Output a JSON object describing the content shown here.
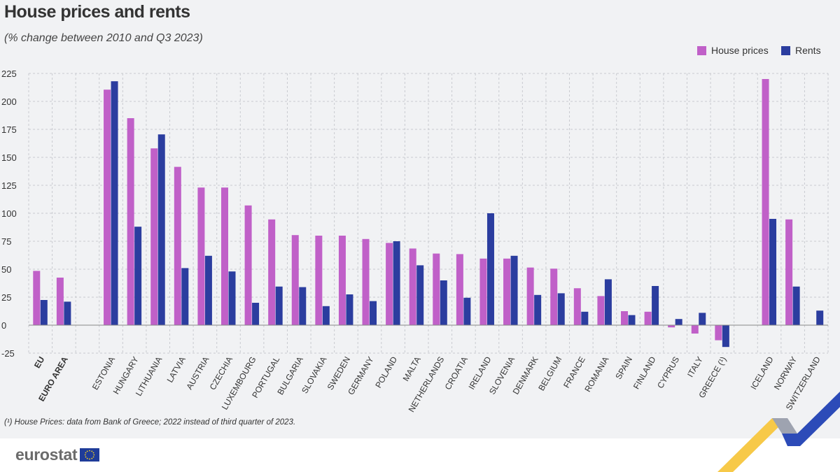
{
  "header": {
    "title": "House prices and rents",
    "subtitle": "(% change between 2010 and Q3 2023)"
  },
  "legend": [
    {
      "label": "House prices",
      "color": "#c060c8"
    },
    {
      "label": "Rents",
      "color": "#2b3d9f"
    }
  ],
  "footnote": "(¹) House Prices: data from Bank of Greece; 2022 instead of third quarter of 2023.",
  "footer": {
    "logo_text": "eurostat",
    "flag_icon": "eu-flag-icon"
  },
  "chart_data": {
    "type": "bar",
    "title": "House prices and rents",
    "subtitle": "(% change between 2010 and Q3 2023)",
    "xlabel": "",
    "ylabel": "",
    "ylim": [
      -25,
      225
    ],
    "yticks": [
      -25,
      0,
      25,
      50,
      75,
      100,
      125,
      150,
      175,
      200,
      225
    ],
    "grid": true,
    "legend_position": "top-right",
    "categories": [
      "EU",
      "EURO AREA",
      "",
      "ESTONIA",
      "HUNGARY",
      "LITHUANIA",
      "LATVIA",
      "AUSTRIA",
      "CZECHIA",
      "LUXEMBOURG",
      "PORTUGAL",
      "BULGARIA",
      "SLOVAKIA",
      "SWEDEN",
      "GERMANY",
      "POLAND",
      "MALTA",
      "NETHERLANDS",
      "CROATIA",
      "IRELAND",
      "SLOVENIA",
      "DENMARK",
      "BELGIUM",
      "FRANCE",
      "ROMANIA",
      "SPAIN",
      "FINLAND",
      "CYPRUS",
      "ITALY",
      "GREECE (¹)",
      "",
      "ICELAND",
      "NORWAY",
      "SWITZERLAND"
    ],
    "bold_categories": [
      "EU",
      "EURO AREA"
    ],
    "series": [
      {
        "name": "House prices",
        "color": "#c060c8",
        "values": [
          48.5,
          42.5,
          null,
          210.5,
          185,
          158,
          141.5,
          123,
          123,
          107,
          94.5,
          80.5,
          80,
          80,
          77,
          73.5,
          68.5,
          64,
          63.5,
          59.5,
          59.5,
          51.5,
          50.5,
          33,
          26,
          12.5,
          12,
          -2,
          -7.5,
          -13.5,
          null,
          220,
          94.5,
          null
        ]
      },
      {
        "name": "Rents",
        "color": "#2b3d9f",
        "values": [
          22.5,
          21,
          null,
          218,
          88,
          170.5,
          51,
          62,
          48,
          20,
          34.5,
          34,
          17,
          27.5,
          21.5,
          75,
          53.5,
          40,
          24.5,
          100,
          62,
          27,
          28.5,
          12,
          41,
          9,
          35,
          5.5,
          11,
          -19.5,
          null,
          95,
          34.5,
          13
        ]
      }
    ]
  }
}
